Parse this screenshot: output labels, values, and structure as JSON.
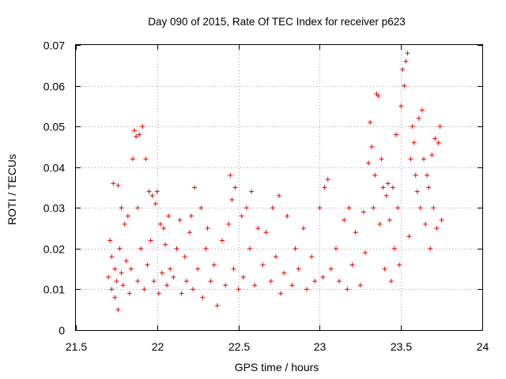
{
  "chart_data": {
    "type": "scatter",
    "title": "Day 090 of 2015, Rate Of TEC Index for receiver p623",
    "xlabel": "GPS time / hours",
    "ylabel": "ROTI / TECUs",
    "xlim": [
      21.5,
      24
    ],
    "ylim": [
      0,
      0.07
    ],
    "xticks": [
      21.5,
      22,
      22.5,
      23,
      23.5,
      24
    ],
    "xtick_labels": [
      "21.5",
      "22",
      "22.5",
      "23",
      "23.5",
      "24"
    ],
    "yticks": [
      0,
      0.01,
      0.02,
      0.03,
      0.04,
      0.05,
      0.06,
      0.07
    ],
    "ytick_labels": [
      "0",
      "0.01",
      "0.02",
      "0.03",
      "0.04",
      "0.05",
      "0.06",
      "0.07"
    ],
    "grid": true,
    "marker": "+",
    "series": [
      {
        "name": "ROTI p623",
        "color": "#ee0000",
        "x": [
          21.7,
          21.71,
          21.72,
          21.72,
          21.73,
          21.74,
          21.74,
          21.75,
          21.76,
          21.76,
          21.77,
          21.78,
          21.78,
          21.79,
          21.8,
          21.81,
          21.82,
          21.83,
          21.84,
          21.85,
          21.86,
          21.87,
          21.88,
          21.88,
          21.89,
          21.9,
          21.91,
          21.92,
          21.93,
          21.94,
          21.95,
          21.96,
          21.97,
          21.98,
          21.99,
          22.0,
          22.01,
          22.02,
          22.03,
          22.04,
          22.05,
          22.06,
          22.07,
          22.08,
          22.1,
          22.12,
          22.14,
          22.15,
          22.17,
          22.18,
          22.2,
          22.21,
          22.22,
          22.23,
          22.25,
          22.27,
          22.28,
          22.3,
          22.31,
          22.33,
          22.35,
          22.37,
          22.4,
          22.42,
          22.44,
          22.45,
          22.46,
          22.47,
          22.48,
          22.5,
          22.52,
          22.53,
          22.55,
          22.57,
          22.58,
          22.6,
          22.62,
          22.65,
          22.67,
          22.7,
          22.71,
          22.73,
          22.75,
          22.76,
          22.78,
          22.8,
          22.83,
          22.85,
          22.87,
          22.9,
          22.92,
          22.95,
          22.97,
          23.0,
          23.02,
          23.03,
          23.05,
          23.07,
          23.1,
          23.12,
          23.15,
          23.17,
          23.18,
          23.2,
          23.22,
          23.25,
          23.27,
          23.28,
          23.3,
          23.31,
          23.32,
          23.33,
          23.34,
          23.35,
          23.36,
          23.37,
          23.38,
          23.39,
          23.4,
          23.41,
          23.42,
          23.43,
          23.44,
          23.45,
          23.46,
          23.47,
          23.48,
          23.49,
          23.5,
          23.51,
          23.52,
          23.53,
          23.54,
          23.55,
          23.56,
          23.57,
          23.58,
          23.59,
          23.6,
          23.61,
          23.62,
          23.63,
          23.64,
          23.65,
          23.66,
          23.67,
          23.68,
          23.69,
          23.7,
          23.71,
          23.72,
          23.73,
          23.74,
          23.75
        ],
        "y": [
          0.013,
          0.022,
          0.018,
          0.01,
          0.036,
          0.015,
          0.008,
          0.012,
          0.0355,
          0.005,
          0.02,
          0.014,
          0.03,
          0.011,
          0.026,
          0.017,
          0.028,
          0.009,
          0.015,
          0.042,
          0.049,
          0.0475,
          0.012,
          0.03,
          0.048,
          0.02,
          0.05,
          0.01,
          0.042,
          0.016,
          0.034,
          0.022,
          0.033,
          0.012,
          0.031,
          0.034,
          0.009,
          0.026,
          0.014,
          0.025,
          0.021,
          0.011,
          0.028,
          0.015,
          0.013,
          0.02,
          0.027,
          0.009,
          0.018,
          0.012,
          0.024,
          0.028,
          0.01,
          0.035,
          0.015,
          0.03,
          0.008,
          0.02,
          0.025,
          0.012,
          0.016,
          0.006,
          0.022,
          0.011,
          0.026,
          0.038,
          0.032,
          0.015,
          0.035,
          0.01,
          0.028,
          0.013,
          0.03,
          0.02,
          0.034,
          0.011,
          0.025,
          0.016,
          0.024,
          0.012,
          0.03,
          0.018,
          0.033,
          0.009,
          0.014,
          0.028,
          0.011,
          0.02,
          0.015,
          0.025,
          0.01,
          0.018,
          0.012,
          0.03,
          0.013,
          0.035,
          0.037,
          0.015,
          0.02,
          0.012,
          0.027,
          0.01,
          0.03,
          0.016,
          0.024,
          0.011,
          0.029,
          0.019,
          0.041,
          0.051,
          0.045,
          0.03,
          0.038,
          0.058,
          0.0575,
          0.026,
          0.042,
          0.035,
          0.015,
          0.033,
          0.036,
          0.027,
          0.012,
          0.035,
          0.02,
          0.048,
          0.03,
          0.016,
          0.055,
          0.064,
          0.06,
          0.066,
          0.068,
          0.023,
          0.042,
          0.05,
          0.046,
          0.038,
          0.034,
          0.052,
          0.03,
          0.054,
          0.042,
          0.026,
          0.038,
          0.035,
          0.02,
          0.043,
          0.03,
          0.047,
          0.025,
          0.046,
          0.05,
          0.027
        ]
      }
    ]
  }
}
